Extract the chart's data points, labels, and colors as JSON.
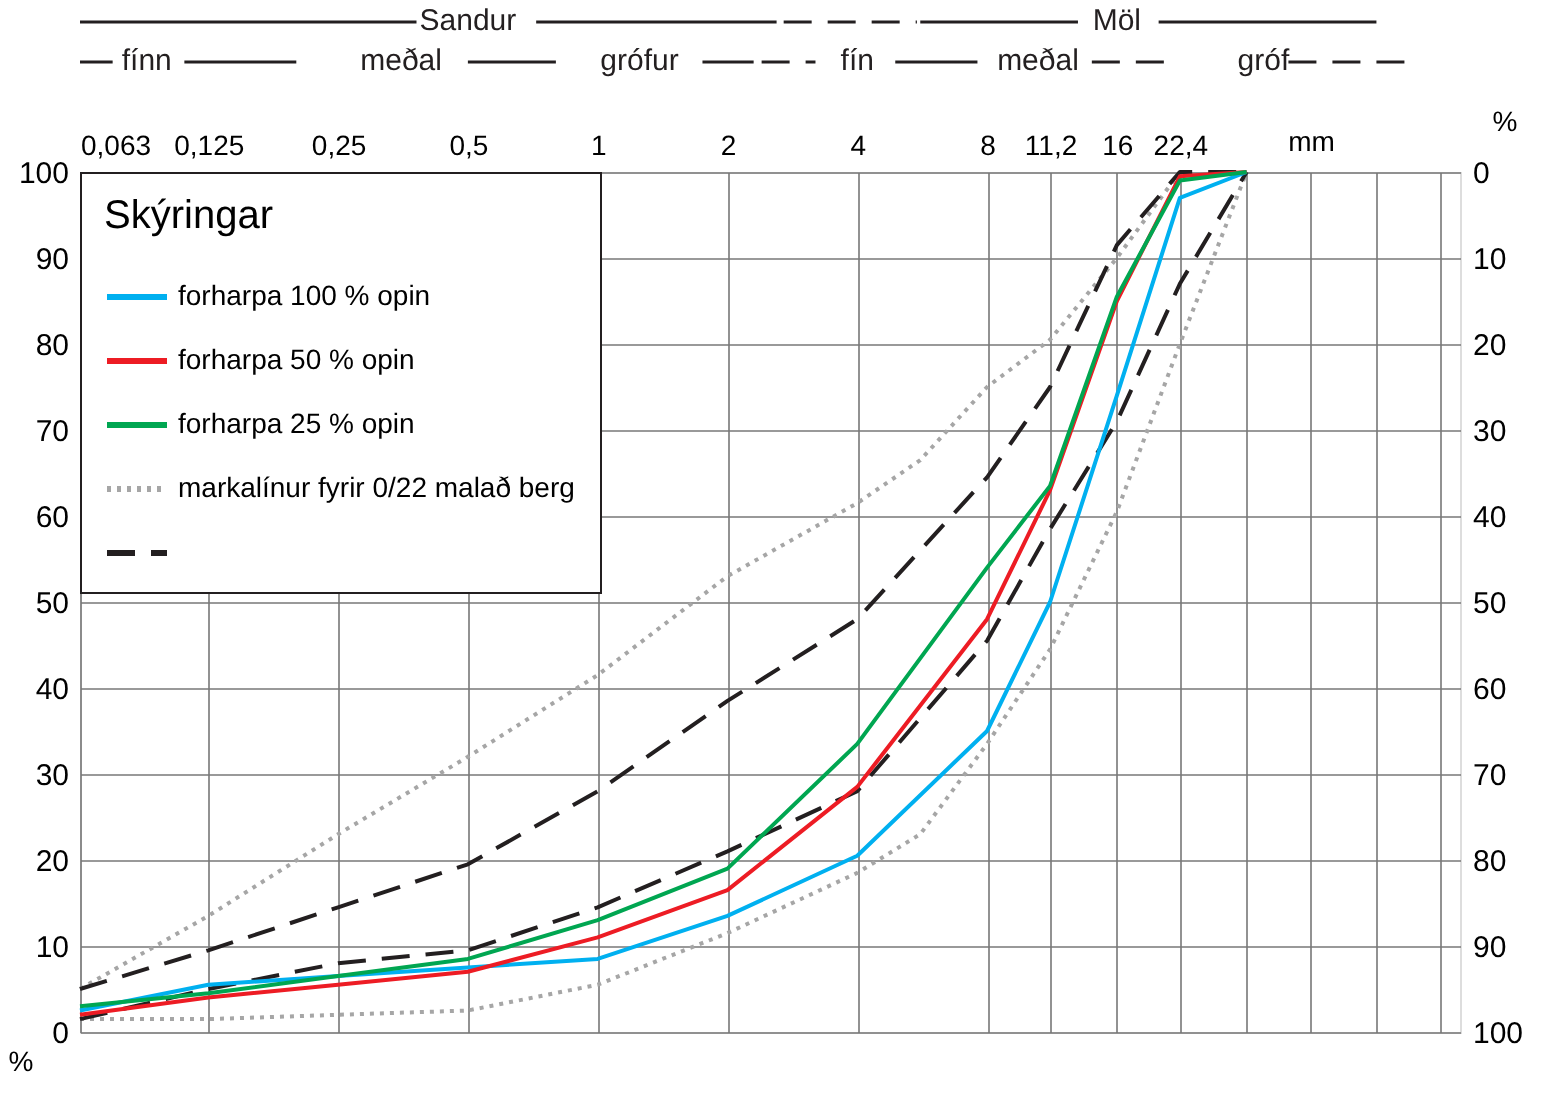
{
  "chart_data": {
    "type": "line",
    "legend_title": "Skýringar",
    "xlabel": "mm",
    "ylabel": "%",
    "y2label": "%",
    "annotations": [
      "Sandur",
      "Möl",
      "fínn",
      "meðal",
      "grófur",
      "fín",
      "meðal",
      "gróf",
      "markalínur fyrir 0/22 malað berg"
    ],
    "x": [
      0.063,
      0.125,
      0.25,
      0.5,
      1,
      2,
      4,
      8,
      11.2,
      16,
      22.4,
      32
    ],
    "series": [
      {
        "type": "line",
        "line_style": "dotted",
        "color": "#a6a6a6",
        "x": [
          0.063,
          0.125,
          0.25,
          0.5,
          1,
          2,
          4,
          5.6,
          8,
          11.2,
          16,
          22.4
        ],
        "values": [
          5,
          13.5,
          23,
          32,
          41.5,
          53,
          61.5,
          66.5,
          75,
          80.5,
          90,
          100
        ]
      },
      {
        "type": "line",
        "line_style": "dotted",
        "color": "#a6a6a6",
        "x": [
          0.063,
          0.125,
          0.25,
          0.5,
          1,
          2,
          4,
          5.6,
          8,
          11.2,
          16,
          22.4,
          32
        ],
        "values": [
          1.5,
          1.5,
          2,
          2.5,
          5.5,
          11.5,
          18.5,
          23,
          33.5,
          44.5,
          60.5,
          80,
          100
        ]
      },
      {
        "type": "line",
        "line_style": "dashed",
        "color": "#231f20",
        "values": [
          5,
          9.5,
          14.5,
          19.5,
          28,
          38.5,
          48,
          64.5,
          75,
          91.5,
          100,
          100
        ]
      },
      {
        "type": "line",
        "line_style": "dashed",
        "color": "#231f20",
        "values": [
          1.5,
          5,
          8,
          9.5,
          14.5,
          21,
          28,
          45.5,
          58.5,
          71,
          87,
          100
        ]
      },
      {
        "name": "forharpa 100 % opin",
        "line_style": "solid",
        "color": "#00b0f0",
        "values": [
          2.5,
          5.5,
          6.5,
          7.5,
          8.5,
          13.5,
          20.5,
          35,
          50,
          74,
          97,
          100
        ]
      },
      {
        "name": "forharpa 50 % opin",
        "line_style": "solid",
        "color": "#ed1c24",
        "values": [
          2,
          4,
          5.5,
          7,
          11,
          16.5,
          28.5,
          48,
          63,
          85,
          99.5,
          100
        ]
      },
      {
        "name": "forharpa 25 % opin",
        "line_style": "solid",
        "color": "#00a651",
        "values": [
          3,
          4.5,
          6.5,
          8.5,
          13,
          19,
          33.5,
          54,
          63.5,
          85.5,
          99,
          100
        ]
      }
    ],
    "xlim": [
      0.063,
      100
    ],
    "xticks": [
      {
        "value": 0.063,
        "label": "0,063"
      },
      {
        "value": 0.125,
        "label": "0,125"
      },
      {
        "value": 0.25,
        "label": "0,25"
      },
      {
        "value": 0.5,
        "label": "0,5"
      },
      1,
      2,
      4,
      8,
      {
        "value": 11.2,
        "label": "11,2"
      },
      16,
      {
        "value": 22.4,
        "label": "22,4"
      },
      {
        "value": 32,
        "label": null
      },
      {
        "value": 45,
        "label": null
      },
      {
        "value": 64,
        "label": null
      },
      {
        "value": 90,
        "label": null
      }
    ],
    "ylim": [
      0,
      100
    ],
    "yticks": [
      0,
      10,
      20,
      30,
      40,
      50,
      60,
      70,
      80,
      90,
      100
    ],
    "y2lim": [
      100,
      0
    ],
    "y2ticks": [
      0,
      10,
      20,
      30,
      40,
      50,
      60,
      70,
      80,
      90,
      100
    ],
    "log": "x",
    "grid": true,
    "legend": "top left",
    "marker": "none"
  }
}
